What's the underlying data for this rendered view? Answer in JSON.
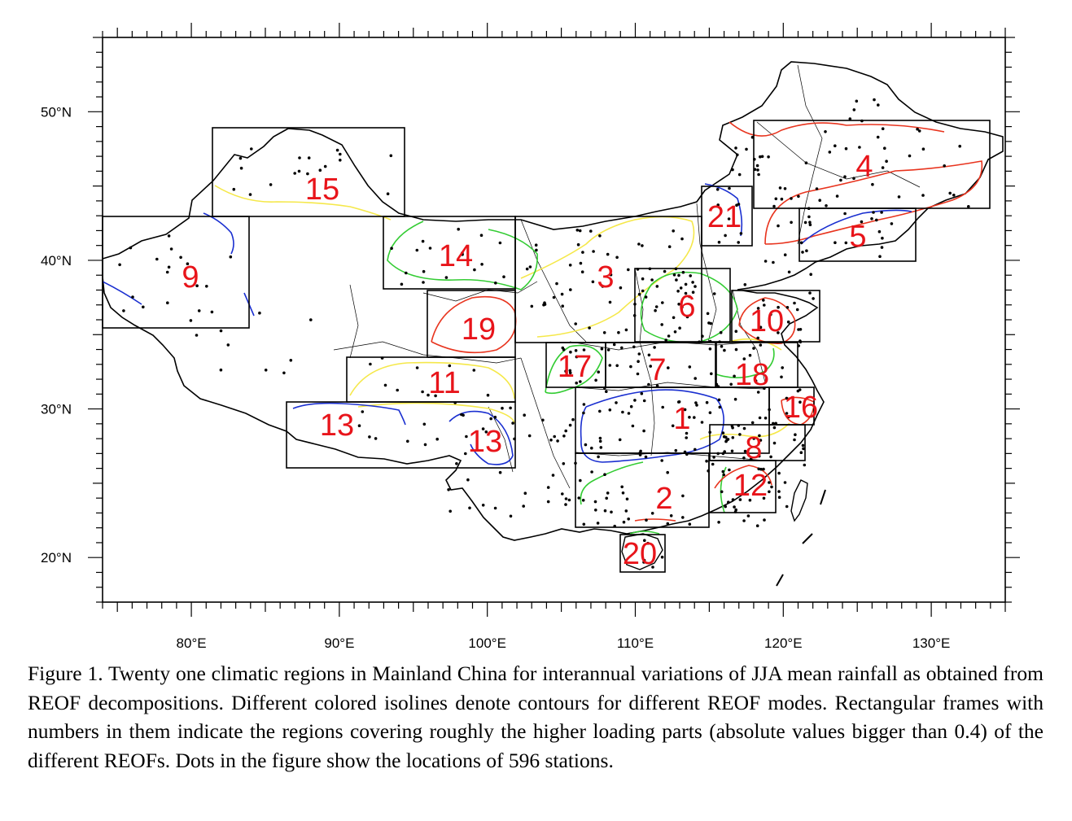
{
  "map": {
    "x_axis": {
      "min": 74,
      "max": 135,
      "ticks": [
        80,
        90,
        100,
        110,
        120,
        130
      ],
      "labels": [
        "80°E",
        "90°E",
        "100°E",
        "110°E",
        "120°E",
        "130°E"
      ]
    },
    "y_axis": {
      "min": 17,
      "max": 55,
      "ticks": [
        20,
        30,
        40,
        50
      ],
      "labels": [
        "20°N",
        "30°N",
        "40°N",
        "50°N"
      ]
    },
    "regions": [
      {
        "number": "1"
      },
      {
        "number": "2"
      },
      {
        "number": "3"
      },
      {
        "number": "4"
      },
      {
        "number": "5"
      },
      {
        "number": "6"
      },
      {
        "number": "7"
      },
      {
        "number": "8"
      },
      {
        "number": "9"
      },
      {
        "number": "10"
      },
      {
        "number": "11"
      },
      {
        "number": "12"
      },
      {
        "number": "13"
      },
      {
        "number": "13"
      },
      {
        "number": "14"
      },
      {
        "number": "15"
      },
      {
        "number": "16"
      },
      {
        "number": "17"
      },
      {
        "number": "18"
      },
      {
        "number": "19"
      },
      {
        "number": "20"
      },
      {
        "number": "21"
      }
    ],
    "colors": {
      "number": "#e8141a",
      "red": "#e8341e",
      "yellow": "#f5e84a",
      "green": "#33cc33",
      "blue": "#1a2fd0",
      "frame": "#000000"
    }
  },
  "caption": "Figure 1. Twenty one climatic regions in Mainland China for interannual variations of JJA mean rainfall as obtained from REOF decompositions. Different colored isolines denote contours for different REOF modes. Rectangular frames with numbers in them indicate the regions covering roughly the higher loading parts (absolute values bigger than 0.4) of the different REOFs. Dots in the figure show the locations of 596 stations."
}
